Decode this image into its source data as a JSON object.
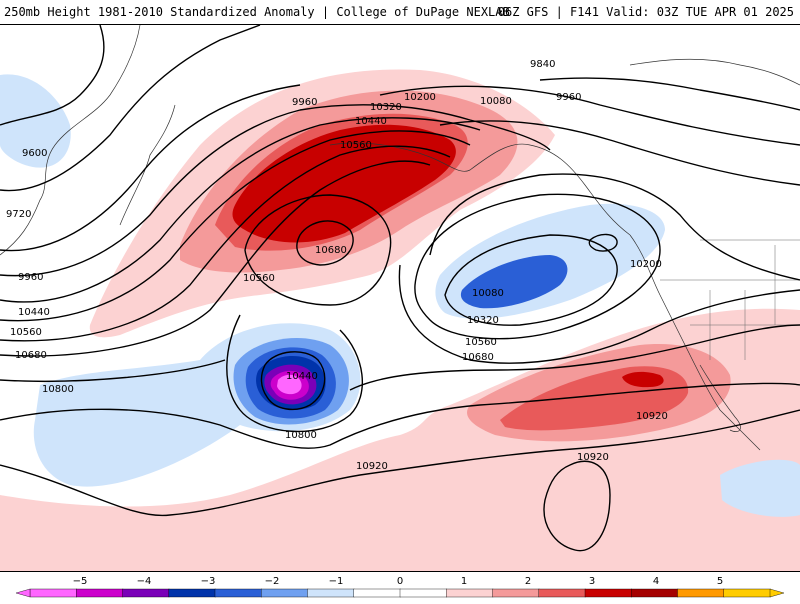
{
  "header": {
    "title": "250mb Height 1981-2010 Standardized Anomaly | College of DuPage NEXLAB",
    "run_info": "06Z GFS | F141 Valid: 03Z TUE APR 01 2025"
  },
  "contour_labels": [
    {
      "id": "c9600",
      "text": "9600"
    },
    {
      "id": "c9720",
      "text": "9720"
    },
    {
      "id": "c9960a",
      "text": "9960"
    },
    {
      "id": "c9960b",
      "text": "9960"
    },
    {
      "id": "c9960c",
      "text": "9960"
    },
    {
      "id": "c9840",
      "text": "9840"
    },
    {
      "id": "c10080a",
      "text": "10080"
    },
    {
      "id": "c10080b",
      "text": "10080"
    },
    {
      "id": "c10200a",
      "text": "10200"
    },
    {
      "id": "c10200b",
      "text": "10200"
    },
    {
      "id": "c10320a",
      "text": "10320"
    },
    {
      "id": "c10320b",
      "text": "10320"
    },
    {
      "id": "c10440a",
      "text": "10440"
    },
    {
      "id": "c10440b",
      "text": "10440"
    },
    {
      "id": "c10440c",
      "text": "10440"
    },
    {
      "id": "c10560a",
      "text": "10560"
    },
    {
      "id": "c10560b",
      "text": "10560"
    },
    {
      "id": "c10560c",
      "text": "10560"
    },
    {
      "id": "c10560d",
      "text": "10560"
    },
    {
      "id": "c10680a",
      "text": "10680"
    },
    {
      "id": "c10680b",
      "text": "10680"
    },
    {
      "id": "c10680c",
      "text": "10680"
    },
    {
      "id": "c10800a",
      "text": "10800"
    },
    {
      "id": "c10800b",
      "text": "10800"
    },
    {
      "id": "c10920a",
      "text": "10920"
    },
    {
      "id": "c10920b",
      "text": "10920"
    },
    {
      "id": "c10920c",
      "text": "10920"
    }
  ],
  "colorbar": {
    "ticks": [
      "−5",
      "−4",
      "−3",
      "−2",
      "−1",
      "0",
      "1",
      "2",
      "3",
      "4",
      "5"
    ],
    "colors": [
      "#ff66ff",
      "#cc00cc",
      "#7a00b8",
      "#0033aa",
      "#2a5fd6",
      "#6fa0f0",
      "#cfe4fb",
      "#ffffff",
      "#ffffff",
      "#fcd2d2",
      "#f49a9a",
      "#e85a5a",
      "#c80000",
      "#a50000",
      "#ff9900",
      "#ffcc00"
    ]
  },
  "colors": {
    "deep_red": "#c80000",
    "mid_red": "#e85a5a",
    "light_red": "#f49a9a",
    "pale_red": "#fcd2d2",
    "pale_blue": "#cfe4fb",
    "light_blue": "#6fa0f0",
    "blue": "#2a5fd6",
    "dark_blue": "#0033aa",
    "purple": "#7a00b8",
    "magenta": "#cc00cc",
    "pink": "#ff66ff"
  }
}
